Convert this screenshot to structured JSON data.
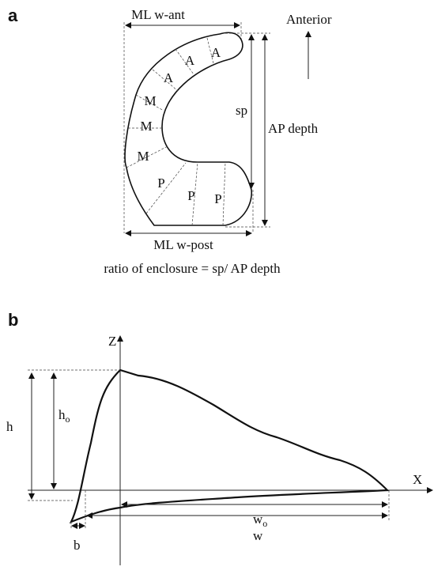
{
  "panel_a": {
    "label": "a",
    "top_width": "ML w-ant",
    "direction": "Anterior",
    "regions": [
      "A",
      "A",
      "A",
      "M",
      "M",
      "M",
      "P",
      "P",
      "P"
    ],
    "sp": "sp",
    "depth": "AP depth",
    "bottom_width": "ML w-post",
    "formula": "ratio of enclosure = sp/ AP depth"
  },
  "panel_b": {
    "label": "b",
    "z_axis": "Z",
    "x_axis": "X",
    "h": "h",
    "h_o": {
      "base": "h",
      "sub": "o"
    },
    "w_o": {
      "base": "w",
      "sub": "o"
    },
    "w": "w",
    "b": "b"
  }
}
